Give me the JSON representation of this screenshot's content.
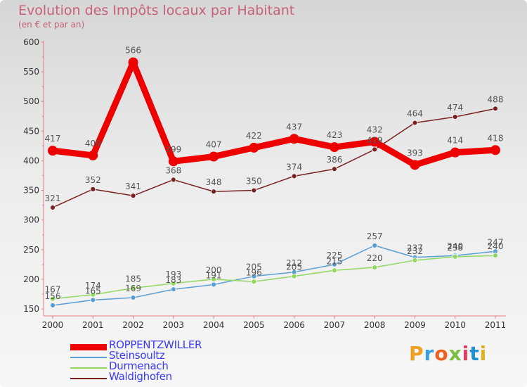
{
  "header": {
    "title": "Evolution des Impôts locaux par Habitant",
    "subtitle": "(en € et par an)"
  },
  "logo": {
    "text": "Proxiti",
    "colors": [
      "#f0a020",
      "#3aa0e0",
      "#f06020",
      "#7ac040",
      "#e04060",
      "#2090d0",
      "#e0b020"
    ]
  },
  "chart_data": {
    "type": "line",
    "title": "Evolution des Impôts locaux par Habitant",
    "subtitle": "(en € et par an)",
    "xlabel": "",
    "ylabel": "",
    "x": [
      "2000",
      "2001",
      "2002",
      "2003",
      "2004",
      "2005",
      "2006",
      "2007",
      "2008",
      "2009",
      "2010",
      "2011"
    ],
    "ylim": [
      150,
      600
    ],
    "yticks": [
      "150",
      "200",
      "250",
      "300",
      "350",
      "400",
      "450",
      "500",
      "550",
      "600"
    ],
    "grid": false,
    "legend_position": "bottom-left",
    "series": [
      {
        "name": "ROPPENTZWILLER",
        "color": "#ee0000",
        "emphasis": true,
        "values": [
          417,
          409,
          566,
          399,
          407,
          422,
          437,
          423,
          432,
          393,
          414,
          418
        ],
        "labels": [
          "417",
          "409",
          "566",
          "399",
          "407",
          "422",
          "437",
          "423",
          "432",
          "393",
          "414",
          "418"
        ]
      },
      {
        "name": "Steinsoultz",
        "color": "#5a9fd4",
        "emphasis": false,
        "values": [
          156,
          165,
          169,
          183,
          191,
          205,
          212,
          225,
          257,
          237,
          240,
          247
        ],
        "labels": [
          "156",
          "165",
          "169",
          "183",
          "191",
          "205",
          "212",
          "225",
          "257",
          "237",
          "240",
          "247"
        ]
      },
      {
        "name": "Durmenach",
        "color": "#90d860",
        "emphasis": false,
        "values": [
          167,
          174,
          185,
          193,
          200,
          196,
          205,
          215,
          220,
          232,
          238,
          240
        ],
        "labels": [
          "167",
          "174",
          "185",
          "193",
          "200",
          "196",
          "205",
          "215",
          "220",
          "232",
          "238",
          "240"
        ]
      },
      {
        "name": "Waldighofen",
        "color": "#7a2020",
        "emphasis": false,
        "values": [
          321,
          352,
          341,
          368,
          348,
          350,
          374,
          386,
          419,
          464,
          474,
          488
        ],
        "labels": [
          "321",
          "352",
          "341",
          "368",
          "348",
          "350",
          "374",
          "386",
          "419",
          "464",
          "474",
          "488"
        ]
      }
    ]
  }
}
